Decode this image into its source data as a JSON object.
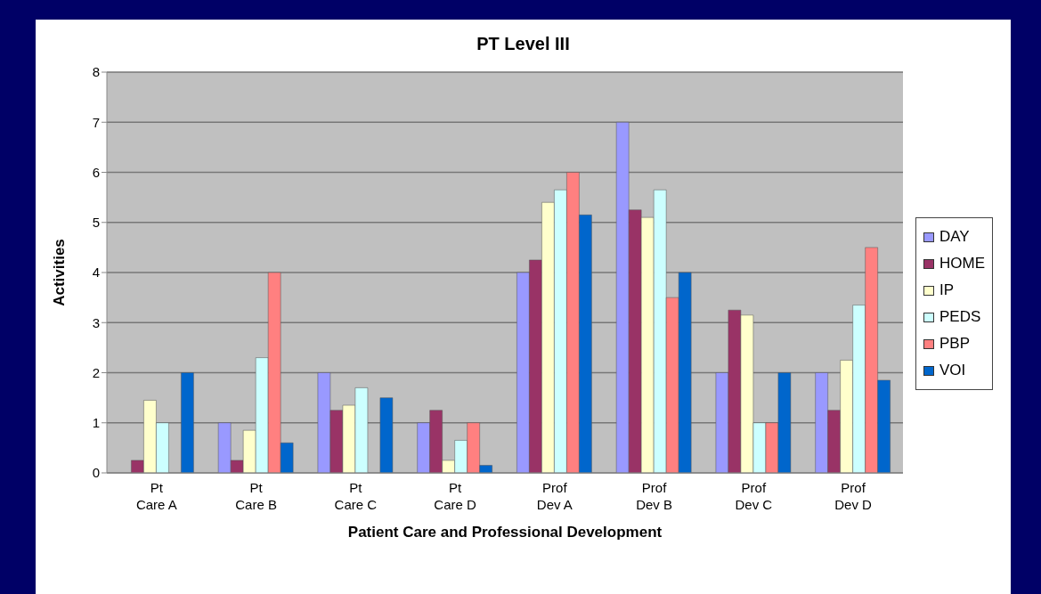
{
  "chart_data": {
    "type": "bar",
    "title": "PT Level III",
    "xlabel": "Patient Care and Professional Development",
    "ylabel": "Activities",
    "categories": [
      "Pt\nCare A",
      "Pt\nCare B",
      "Pt\nCare C",
      "Pt\nCare D",
      "Prof\nDev A",
      "Prof\nDev B",
      "Prof\nDev C",
      "Prof\nDev D"
    ],
    "series": [
      {
        "name": "DAY",
        "color": "#9999ff",
        "values": [
          0,
          1,
          2,
          1,
          4,
          7,
          2,
          2
        ]
      },
      {
        "name": "HOME",
        "color": "#993366",
        "values": [
          0.25,
          0.25,
          1.25,
          1.25,
          4.25,
          5.25,
          3.25,
          1.25
        ]
      },
      {
        "name": "IP",
        "color": "#ffffcc",
        "values": [
          1.45,
          0.85,
          1.35,
          0.25,
          5.4,
          5.1,
          3.15,
          2.25
        ]
      },
      {
        "name": "PEDS",
        "color": "#ccffff",
        "values": [
          1,
          2.3,
          1.7,
          0.65,
          5.65,
          5.65,
          1,
          3.35
        ]
      },
      {
        "name": "PBP",
        "color": "#ff8080",
        "values": [
          0,
          4,
          0,
          1,
          6,
          3.5,
          1,
          4.5
        ]
      },
      {
        "name": "VOI",
        "color": "#0066cc",
        "values": [
          2,
          0.6,
          1.5,
          0.15,
          5.15,
          4,
          2,
          1.85
        ]
      }
    ],
    "ylim": [
      0,
      8
    ],
    "yticks": [
      0,
      1,
      2,
      3,
      4,
      5,
      6,
      7,
      8
    ],
    "grid": "y",
    "legend": "right"
  }
}
